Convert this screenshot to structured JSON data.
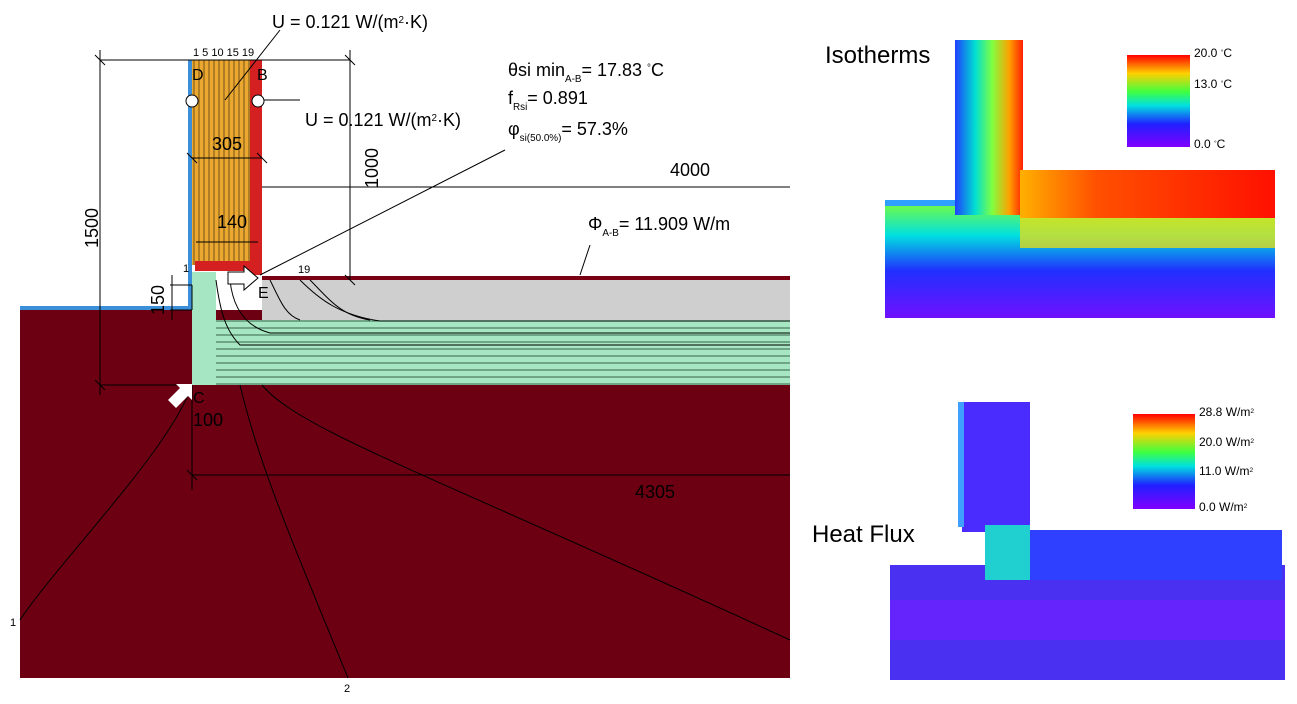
{
  "drawing": {
    "u_top": [
      {
        "text": "U = 0.121 W/(m"
      },
      {
        "text": "2",
        "pos": "sup"
      },
      {
        "text": "·K)"
      }
    ],
    "layer_ticks": "1 5 10 15 19",
    "point_d": "D",
    "point_b": "B",
    "point_e": "E",
    "point_c": "C",
    "u_wall": [
      {
        "text": "U = 0.121 W/(m"
      },
      {
        "text": "2",
        "pos": "sup"
      },
      {
        "text": "·K)"
      }
    ],
    "theta": [
      {
        "text": "θsi min"
      },
      {
        "text": "A-B",
        "pos": "sub"
      },
      {
        "text": "= 17.83 "
      },
      {
        "text": "°",
        "pos": "sup"
      },
      {
        "text": "C"
      }
    ],
    "frsi": [
      {
        "text": "f"
      },
      {
        "text": "Rsi",
        "pos": "sub"
      },
      {
        "text": "= 0.891"
      }
    ],
    "phi": [
      {
        "text": "φ"
      },
      {
        "text": "si(50.0%)",
        "pos": "sub"
      },
      {
        "text": "= 57.3%"
      }
    ],
    "flux": [
      {
        "text": "Φ"
      },
      {
        "text": "A-B",
        "pos": "sub"
      },
      {
        "text": "= 11.909 W/m"
      }
    ],
    "dimensions": [
      "1500",
      "1000",
      "305",
      "140",
      "150",
      "100",
      "4000",
      "4305",
      "19",
      "1",
      "1",
      "2"
    ]
  },
  "isotherms": {
    "title": "Isotherms",
    "legend": [
      [
        {
          "text": "20.0 "
        },
        {
          "text": "°",
          "pos": "sup"
        },
        {
          "text": "C"
        }
      ],
      [
        {
          "text": "13.0 "
        },
        {
          "text": "°",
          "pos": "sup"
        },
        {
          "text": "C"
        }
      ],
      [
        {
          "text": "0.0 "
        },
        {
          "text": "°",
          "pos": "sup"
        },
        {
          "text": "C"
        }
      ]
    ]
  },
  "heat_flux": {
    "title": "Heat Flux",
    "legend": [
      [
        {
          "text": "28.8 W/m"
        },
        {
          "text": "2",
          "pos": "sup"
        }
      ],
      [
        {
          "text": "20.0 W/m"
        },
        {
          "text": "2",
          "pos": "sup"
        }
      ],
      [
        {
          "text": "11.0 W/m"
        },
        {
          "text": "2",
          "pos": "sup"
        }
      ],
      [
        {
          "text": "0.0 W/m"
        },
        {
          "text": "2",
          "pos": "sup"
        }
      ]
    ]
  }
}
